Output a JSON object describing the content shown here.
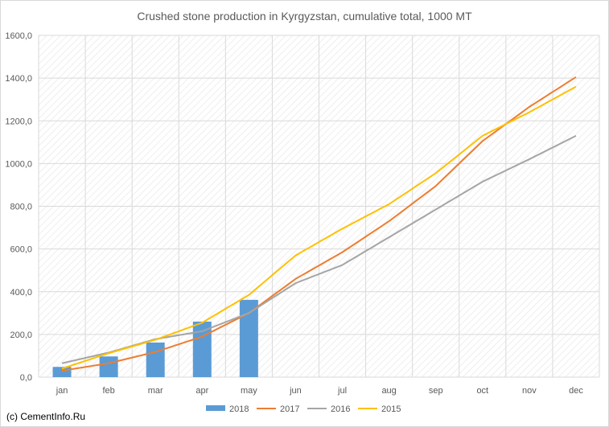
{
  "chart_data": {
    "type": "bar+line",
    "title": "Crushed stone production in Kyrgyzstan, cumulative total, 1000 MT",
    "categories": [
      "jan",
      "feb",
      "mar",
      "apr",
      "may",
      "jun",
      "jul",
      "aug",
      "sep",
      "oct",
      "nov",
      "dec"
    ],
    "ylim": [
      0,
      1600
    ],
    "yticks": [
      0,
      200,
      400,
      600,
      800,
      1000,
      1200,
      1400,
      1600
    ],
    "ytick_labels": [
      "0,0",
      "200,0",
      "400,0",
      "600,0",
      "800,0",
      "1000,0",
      "1200,0",
      "1400,0",
      "1600,0"
    ],
    "grid": true,
    "legend_position": "bottom",
    "bar_series": [
      {
        "name": "2018",
        "color": "#5b9bd5",
        "values": [
          48,
          97,
          162,
          260,
          362,
          null,
          null,
          null,
          null,
          null,
          null,
          null
        ]
      }
    ],
    "line_series": [
      {
        "name": "2017",
        "color": "#ed7d31",
        "values": [
          30,
          65,
          118,
          190,
          300,
          460,
          585,
          730,
          895,
          1105,
          1265,
          1405
        ]
      },
      {
        "name": "2016",
        "color": "#a5a5a5",
        "values": [
          65,
          115,
          178,
          215,
          300,
          440,
          525,
          655,
          785,
          915,
          1020,
          1130
        ]
      },
      {
        "name": "2015",
        "color": "#ffc000",
        "values": [
          40,
          112,
          175,
          255,
          385,
          570,
          695,
          810,
          955,
          1130,
          1240,
          1360
        ]
      }
    ]
  },
  "credit": "(c) CementInfo.Ru"
}
